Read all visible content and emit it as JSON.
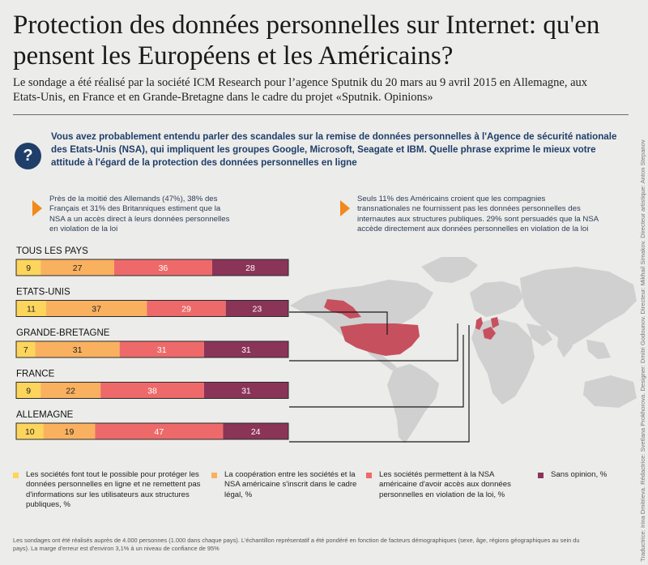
{
  "title": "Protection des données personnelles sur Internet: qu'en pensent  les Européens et les Américains?",
  "subtitle": "Le sondage a été réalisé par la société ICM Research pour l’agence Sputnik du 20 mars au 9 avril 2015 en Allemagne, aux Etats-Unis, en France et en Grande-Bretagne dans le cadre du projet «Sputnik. Opinions»",
  "question": {
    "icon": "?",
    "text": "Vous avez probablement entendu parler des scandales sur la remise de données personnelles à l'Agence de sécurité nationale des Etats-Unis (NSA), qui impliquent les groupes Google, Microsoft, Seagate et IBM. Quelle phrase exprime le mieux votre attitude à l'égard de la protection des données personnelles en ligne"
  },
  "notes": [
    "Près de la moitié des Allemands (47%), 38% des Français et 31% des Britanniques estiment que la NSA a un accès direct à leurs données personnelles en violation de la loi",
    "Seuls 11% des Américains croient que les compagnies  transnationales ne fournissent pas les données personnelles des internautes aux structures publiques. 29% sont persuadés que la NSA accède directement aux données personnelles en violation de la loi"
  ],
  "chart_data": {
    "type": "bar",
    "orientation": "horizontal",
    "stacked": true,
    "unit": "%",
    "categories": [
      "TOUS LES PAYS",
      "ETATS-UNIS",
      "GRANDE-BRETAGNE",
      "FRANCE",
      "ALLEMAGNE"
    ],
    "series": [
      {
        "name": "Les sociétés font tout le possible pour protéger les données personnelles en ligne et ne remettent pas d'informations sur les utilisateurs aux structures publiques, %",
        "color": "#fdd55c",
        "values": [
          9,
          11,
          7,
          9,
          10
        ]
      },
      {
        "name": "La coopération entre les sociétés et la NSA américaine s'inscrit dans le cadre légal, %",
        "color": "#f9b160",
        "values": [
          27,
          37,
          31,
          22,
          19
        ]
      },
      {
        "name": "Les sociétés permettent à la NSA américaine d'avoir accès aux données personnelles en violation de la loi, %",
        "color": "#ee6a6a",
        "values": [
          36,
          29,
          31,
          38,
          47
        ]
      },
      {
        "name": "Sans opinion, %",
        "color": "#8a3458",
        "values": [
          28,
          23,
          31,
          31,
          24
        ]
      }
    ],
    "legend_position": "bottom",
    "map_color": "#cfd0cf",
    "highlight_color": "#c7505e"
  },
  "footer": "Les sondages ont été réalisés auprès de 4.000 personnes (1.000 dans chaque pays). L'échantillon représentatif a été pondéré en fonction de facteurs démographiques (sexe, âge, régions géographiques au sein du pays). La marge d'erreur est d'environ 3,1% à un niveau de confiance de 95%",
  "credits": "Traductrice: Irina Dmitrieva. Rédactrice: Svetlana Prokhorova. Designer: Dmitri Godounov. Directeur: Mikhail Simakov. Directeur artistique: Anton Stepanov"
}
